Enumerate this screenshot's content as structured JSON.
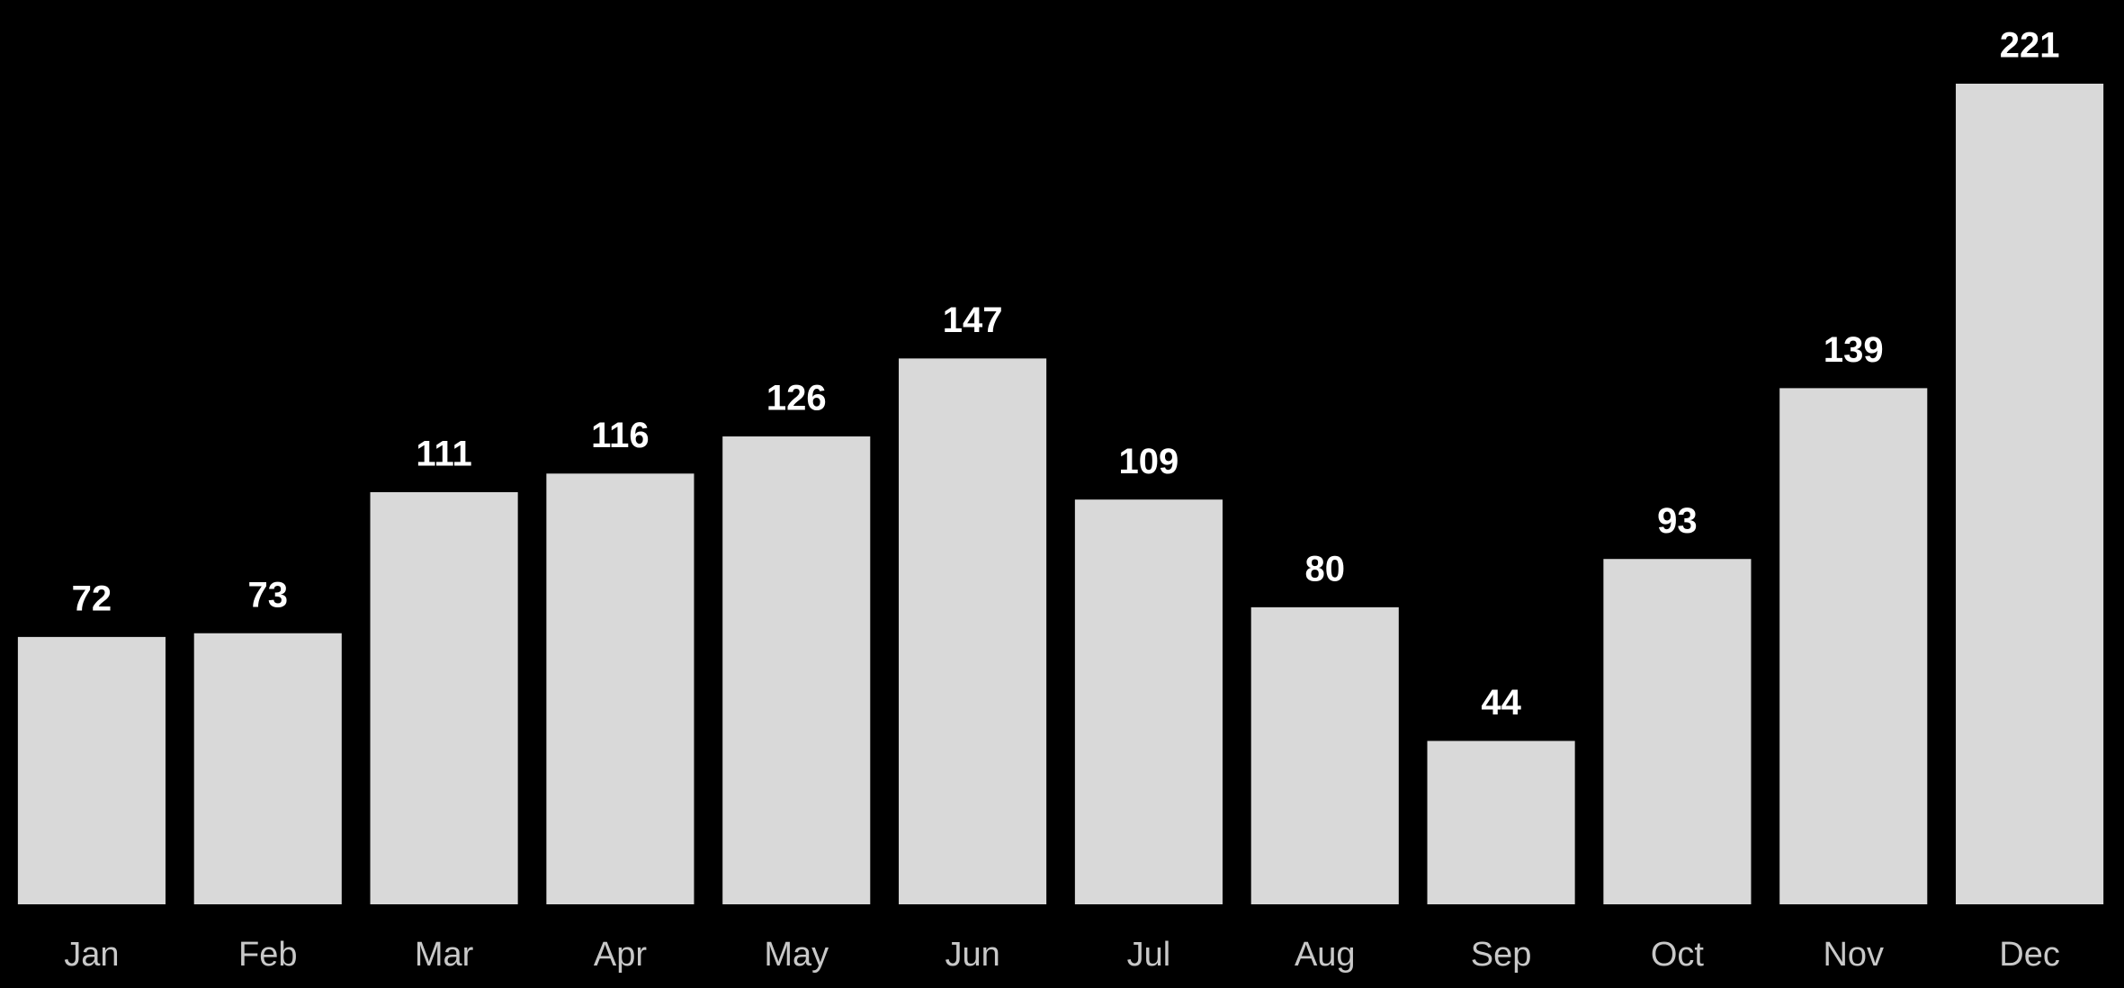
{
  "chart_data": {
    "type": "bar",
    "categories": [
      "Jan",
      "Feb",
      "Mar",
      "Apr",
      "May",
      "Jun",
      "Jul",
      "Aug",
      "Sep",
      "Oct",
      "Nov",
      "Dec"
    ],
    "values": [
      72,
      73,
      111,
      116,
      126,
      147,
      109,
      80,
      44,
      93,
      139,
      221
    ],
    "color": "#d9d9d9"
  }
}
